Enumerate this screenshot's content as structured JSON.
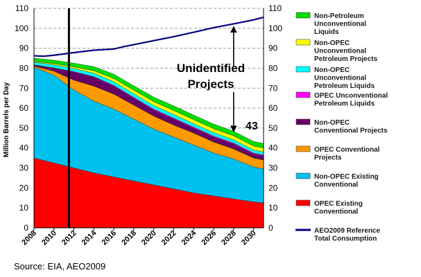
{
  "chart_data": {
    "type": "area",
    "stacked": true,
    "ylabel": "Million Barrels per Day",
    "ylim": [
      0,
      110
    ],
    "yticks": [
      0,
      10,
      20,
      30,
      40,
      50,
      60,
      70,
      80,
      90,
      100,
      110
    ],
    "secondary_yticks": [
      0,
      10,
      20,
      30,
      40,
      50,
      60,
      70,
      80,
      90,
      100,
      110
    ],
    "xlim": [
      2008,
      2031
    ],
    "xticks": [
      "2008",
      "2010",
      "2012",
      "2014",
      "2016",
      "2018",
      "2020",
      "2022",
      "2024",
      "2026",
      "2028",
      "2030"
    ],
    "grid": "horizontal dashed",
    "legend_position": "right",
    "x": [
      2008,
      2010,
      2012,
      2014,
      2016,
      2018,
      2020,
      2022,
      2024,
      2026,
      2028,
      2030,
      2031
    ],
    "series": [
      {
        "name": "OPEC Existing Conventional",
        "color": "#ff0000",
        "values": [
          35,
          32.5,
          30,
          27.5,
          25.5,
          23.5,
          21.5,
          19.5,
          17.5,
          16,
          14.5,
          13,
          12.5
        ]
      },
      {
        "name": "Non-OPEC Existing Conventional",
        "color": "#00c0f0",
        "values": [
          45.5,
          44,
          39,
          36,
          34,
          31,
          28,
          26,
          24,
          21.5,
          20,
          17.5,
          17
        ]
      },
      {
        "name": "OPEC Conventional Projects",
        "color": "#ff9900",
        "values": [
          0.5,
          2,
          5,
          7.5,
          7.5,
          7,
          6.5,
          6,
          6,
          5.5,
          5,
          4.5,
          4.5
        ]
      },
      {
        "name": "Non-OPEC Conventional Projects",
        "color": "#660066",
        "values": [
          0.5,
          1.5,
          4,
          4.5,
          4,
          3.5,
          3,
          3,
          2.5,
          2.5,
          2.5,
          2,
          2
        ]
      },
      {
        "name": "OPEC Unconventional Petroleum Liquids",
        "color": "#ff00ff",
        "values": [
          0.2,
          0.2,
          0.3,
          0.3,
          0.4,
          0.4,
          0.5,
          0.5,
          0.5,
          0.5,
          0.5,
          0.5,
          0.5
        ]
      },
      {
        "name": "Non-OPEC Unconventional Petroleum Liquids",
        "color": "#00ffff",
        "values": [
          1.3,
          1.5,
          1.5,
          1.7,
          1.8,
          1.8,
          1.8,
          1.8,
          1.7,
          1.7,
          1.6,
          1.5,
          1.5
        ]
      },
      {
        "name": "Non-OPEC Unconventional Petroleum Projects",
        "color": "#ffff00",
        "values": [
          0.4,
          0.6,
          0.8,
          1.2,
          1.6,
          1.8,
          1.9,
          2,
          2,
          2,
          2,
          2,
          2
        ]
      },
      {
        "name": "Non-Petroleum Unconventional Liquids",
        "color": "#00dd00",
        "values": [
          1.6,
          1.7,
          1.9,
          2.1,
          2.2,
          2.2,
          2.3,
          2.3,
          2.3,
          2.3,
          2.3,
          2.3,
          2.3
        ]
      }
    ],
    "line_series": {
      "name": "AEO2009 Reference Total Consumption",
      "color": "#000080",
      "x": [
        2008,
        2009,
        2010,
        2012,
        2014,
        2016,
        2017,
        2018,
        2020,
        2022,
        2024,
        2026,
        2028,
        2030,
        2031
      ],
      "values": [
        86.2,
        86,
        86.5,
        87.8,
        89,
        89.6,
        90.8,
        91.8,
        93.8,
        95.8,
        98,
        100.3,
        102.2,
        104.2,
        105.5
      ]
    },
    "vertical_marker_x": 2011.5,
    "annotations": {
      "unidentified_line1": "Unidentified",
      "unidentified_line2": "Projects",
      "value_43": "43"
    },
    "legend": [
      {
        "lines": [
          "Non-Petroleum",
          "Unconventional",
          "Liquids"
        ],
        "color": "#00dd00",
        "type": "box"
      },
      {
        "lines": [
          "Non-OPEC",
          "Unconventional",
          "Petroleum Projects"
        ],
        "color": "#ffff00",
        "type": "box"
      },
      {
        "lines": [
          "Non-OPEC",
          "Unconventional",
          "Petroleum Liquids"
        ],
        "color": "#00ffff",
        "type": "box"
      },
      {
        "lines": [
          "OPEC Unconventional",
          "Petroleum Liquids"
        ],
        "color": "#ff00ff",
        "type": "box"
      },
      {
        "lines": [
          "Non-OPEC",
          "Conventional Projects"
        ],
        "color": "#660066",
        "type": "box"
      },
      {
        "lines": [
          "OPEC Conventional",
          "Projects"
        ],
        "color": "#ff9900",
        "type": "box"
      },
      {
        "lines": [
          "Non-OPEC Existing",
          "Conventional"
        ],
        "color": "#00c0f0",
        "type": "box"
      },
      {
        "lines": [
          "OPEC Existing",
          "Conventional"
        ],
        "color": "#ff0000",
        "type": "box"
      },
      {
        "lines": [
          "AEO2009 Reference",
          "Total Consumption"
        ],
        "color": "#000080",
        "type": "line"
      }
    ],
    "source": "Source: EIA, AEO2009"
  }
}
